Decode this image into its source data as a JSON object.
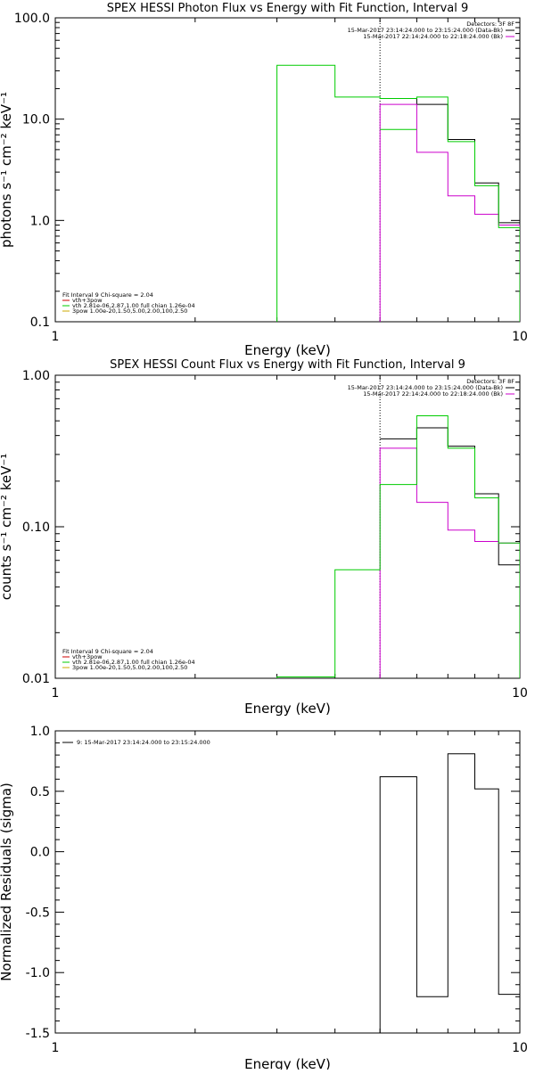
{
  "chart_data": [
    {
      "type": "line",
      "title": "SPEX HESSI Photon Flux vs Energy with Fit Function, Interval 9",
      "xlabel": "Energy (keV)",
      "ylabel": "photons s⁻¹ cm⁻² keV⁻¹",
      "xscale": "log",
      "yscale": "log",
      "xlim": [
        1,
        10
      ],
      "ylim": [
        0.1,
        100
      ],
      "xticks": [
        {
          "v": 1,
          "label": "1"
        },
        {
          "v": 10,
          "label": "10"
        }
      ],
      "yticks": [
        {
          "v": 0.1,
          "label": "0.1"
        },
        {
          "v": 1,
          "label": "1.0"
        },
        {
          "v": 10,
          "label": "10.0"
        },
        {
          "v": 100,
          "label": "100.0"
        }
      ],
      "vline": 5.0,
      "legend_top": {
        "header": "Detectors: 3F 8F",
        "entries": [
          {
            "text": "15-Mar-2017 23:14:24.000 to 23:15:24.000 (Data-Bk)",
            "color": "#000000"
          },
          {
            "text": "15-Mar-2017 22:14:24.000 to 22:18:24.000 (Bk)",
            "color": "#cc00cc"
          }
        ]
      },
      "legend_bottom": {
        "header": "Fit Interval 9   Chi-square = 2.04",
        "entries": [
          {
            "text": "vth+3pow",
            "color": "#cc0000"
          },
          {
            "text": "vth 2.81e-06,2.87,1.00  full chian 1.26e-04",
            "color": "#00cc00"
          },
          {
            "text": "3pow 1.00e-20,1.50,5.00,2.00,100,2.50",
            "color": "#ccaa00"
          }
        ]
      },
      "series": [
        {
          "name": "15-Mar-2017 23:14:24.000 to 23:15:24.000 (Data-Bk)",
          "color": "#000000",
          "edges": [
            5.0,
            6.0,
            7.0,
            8.0,
            9.0,
            10.0
          ],
          "values": [
            16.0,
            14.0,
            6.3,
            2.35,
            0.95
          ]
        },
        {
          "name": "15-Mar-2017 22:14:24.000 to 22:18:24.000 (Bk)",
          "color": "#cc00cc",
          "edges": [
            5.0,
            6.0,
            7.0,
            8.0,
            9.0,
            10.0
          ],
          "values": [
            14.0,
            4.7,
            1.75,
            1.15,
            0.9
          ],
          "drop_left": true,
          "drop_right": true
        },
        {
          "name": "vth+3pow (model)",
          "color": "#00cc00",
          "edges": [
            3.0,
            4.0,
            5.0,
            6.0,
            7.0,
            8.0,
            9.0,
            10.0
          ],
          "values": [
            34.0,
            16.5,
            16.0,
            16.5,
            6.0,
            2.2,
            0.85
          ],
          "drop_left": true,
          "drop_right": true
        },
        {
          "name": "vth+3pow (model, lower)",
          "color": "#00cc00",
          "edges": [
            5.0,
            6.0
          ],
          "values": [
            7.9
          ],
          "join": true
        }
      ]
    },
    {
      "type": "line",
      "title": "SPEX HESSI Count Flux vs Energy with Fit Function, Interval 9",
      "xlabel": "Energy (keV)",
      "ylabel": "counts s⁻¹ cm⁻² keV⁻¹",
      "xscale": "log",
      "yscale": "log",
      "xlim": [
        1,
        10
      ],
      "ylim": [
        0.01,
        1
      ],
      "xticks": [
        {
          "v": 1,
          "label": "1"
        },
        {
          "v": 10,
          "label": "10"
        }
      ],
      "yticks": [
        {
          "v": 0.01,
          "label": "0.01"
        },
        {
          "v": 0.1,
          "label": "0.10"
        },
        {
          "v": 1,
          "label": "1.00"
        }
      ],
      "vline": 5.0,
      "legend_top": {
        "header": "Detectors: 3F 8F",
        "entries": [
          {
            "text": "15-Mar-2017 23:14:24.000 to 23:15:24.000 (Data-Bk)",
            "color": "#000000"
          },
          {
            "text": "15-Mar-2017 22:14:24.000 to 22:18:24.000 (Bk)",
            "color": "#cc00cc"
          }
        ]
      },
      "legend_bottom": {
        "header": "Fit Interval 9   Chi-square = 2.04",
        "entries": [
          {
            "text": "vth+3pow",
            "color": "#cc0000"
          },
          {
            "text": "vth 2.81e-06,2.87,1.00  full chian 1.26e-04",
            "color": "#00cc00"
          },
          {
            "text": "3pow 1.00e-20,1.50,5.00,2.00,100,2.50",
            "color": "#ccaa00"
          }
        ]
      },
      "series": [
        {
          "name": "15-Mar-2017 23:14:24.000 to 23:15:24.000 (Data-Bk)",
          "color": "#000000",
          "edges": [
            5.0,
            6.0,
            7.0,
            8.0,
            9.0,
            10.0
          ],
          "values": [
            0.38,
            0.45,
            0.34,
            0.165,
            0.056
          ]
        },
        {
          "name": "15-Mar-2017 22:14:24.000 to 22:18:24.000 (Bk)",
          "color": "#cc00cc",
          "edges": [
            5.0,
            6.0,
            7.0,
            8.0,
            9.0,
            10.0
          ],
          "values": [
            0.33,
            0.145,
            0.095,
            0.08,
            0.078
          ],
          "drop_left": true,
          "drop_right": true
        },
        {
          "name": "vth+3pow (model)",
          "color": "#00cc00",
          "edges": [
            3.0,
            4.0,
            5.0,
            6.0,
            7.0,
            8.0,
            9.0,
            10.0
          ],
          "values": [
            0.0102,
            0.052,
            0.19,
            0.54,
            0.33,
            0.155,
            0.078
          ],
          "drop_left": true,
          "drop_right": true
        }
      ]
    },
    {
      "type": "line",
      "title": "",
      "xlabel": "Energy (keV)",
      "ylabel": "Normalized Residuals (sigma)",
      "xscale": "log",
      "yscale": "linear",
      "xlim": [
        1,
        10
      ],
      "ylim": [
        -1.5,
        1.0
      ],
      "xticks": [
        {
          "v": 1,
          "label": "1"
        },
        {
          "v": 10,
          "label": "10"
        }
      ],
      "yticks": [
        {
          "v": -1.5,
          "label": "-1.5"
        },
        {
          "v": -1.0,
          "label": "-1.0"
        },
        {
          "v": -0.5,
          "label": "-0.5"
        },
        {
          "v": 0.0,
          "label": "0.0"
        },
        {
          "v": 0.5,
          "label": "0.5"
        },
        {
          "v": 1.0,
          "label": "1.0"
        }
      ],
      "legend_top": {
        "header": "",
        "entries": [
          {
            "text": "9: 15-Mar-2017 23:14:24.000 to 23:15:24.000",
            "color": "#000000"
          }
        ]
      },
      "series": [
        {
          "name": "9: 15-Mar-2017 23:14:24.000 to 23:15:24.000",
          "color": "#000000",
          "edges": [
            5.0,
            6.0,
            7.0,
            8.0,
            9.0,
            10.0
          ],
          "values": [
            0.62,
            -1.2,
            0.81,
            0.52,
            -1.18
          ],
          "drop_left": true
        }
      ]
    }
  ]
}
